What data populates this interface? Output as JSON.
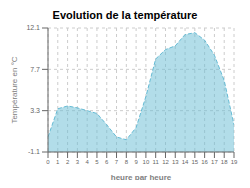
{
  "chart_data": {
    "type": "area",
    "title": "Evolution de la température",
    "xlabel": "heure par heure",
    "ylabel": "Température en °C",
    "x": [
      0,
      1,
      2,
      3,
      4,
      5,
      6,
      7,
      8,
      9,
      10,
      11,
      12,
      13,
      14,
      15,
      16,
      17,
      18,
      19
    ],
    "values": [
      0.5,
      3.5,
      3.8,
      3.6,
      3.3,
      3.0,
      1.8,
      0.5,
      0.2,
      1.5,
      4.8,
      8.8,
      9.8,
      10.2,
      11.4,
      11.6,
      10.8,
      9.2,
      6.5,
      1.8
    ],
    "color": "#66bbd4",
    "line_style": "dashed",
    "xlim": [
      0,
      19
    ],
    "xticks": [
      0,
      1,
      2,
      3,
      4,
      5,
      6,
      7,
      8,
      9,
      10,
      11,
      12,
      13,
      14,
      15,
      16,
      17,
      18,
      19
    ],
    "ylim": [
      -1.1,
      12.1
    ],
    "yticks": [
      -1.1,
      3.3,
      7.7,
      12.1
    ],
    "grid": true
  }
}
